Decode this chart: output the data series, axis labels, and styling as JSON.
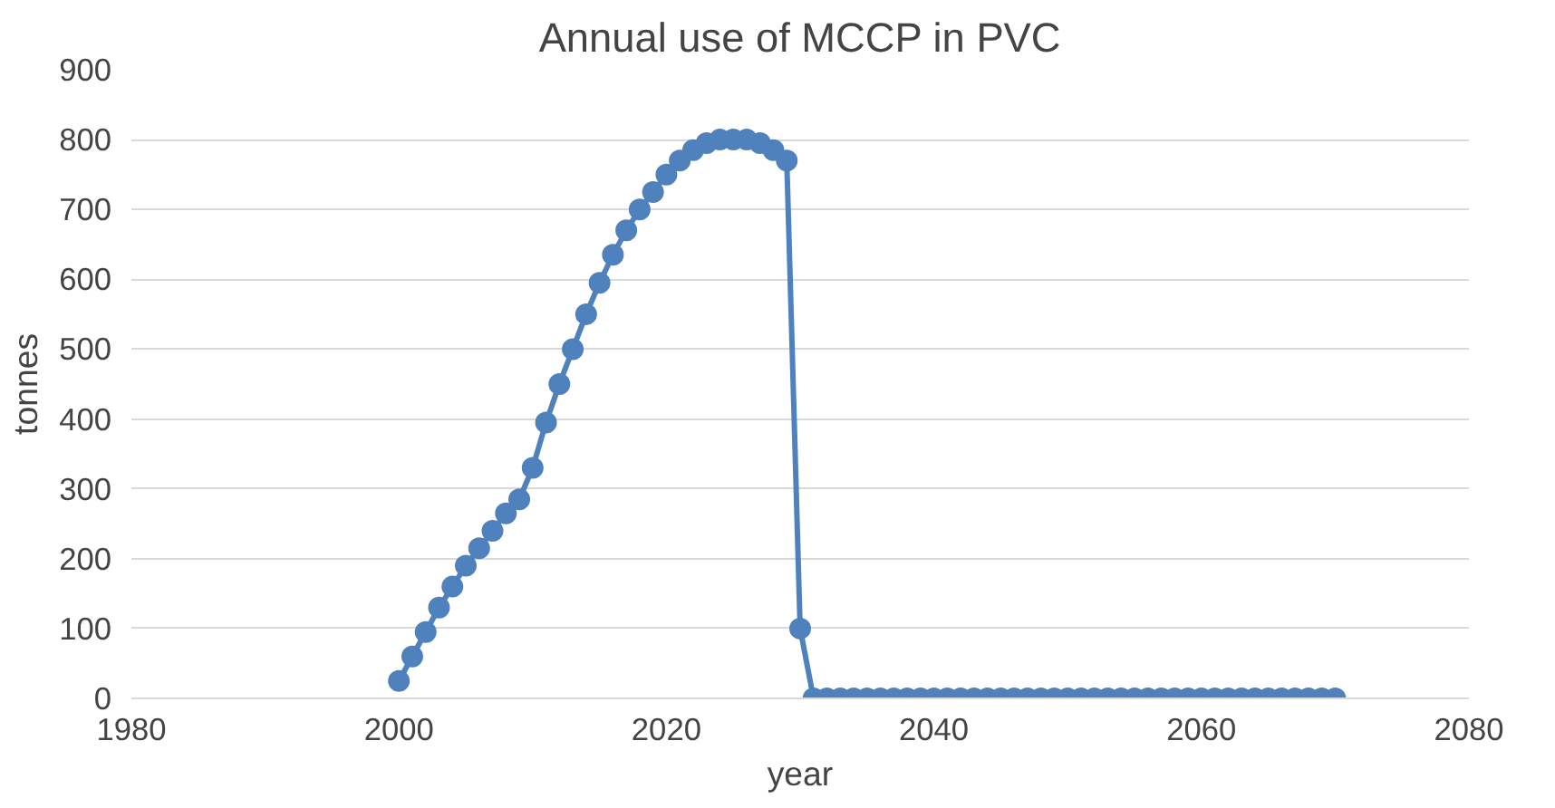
{
  "chart_data": {
    "type": "line",
    "title": "Annual use of MCCP in PVC",
    "xlabel": "year",
    "ylabel": "tonnes",
    "x": [
      2000,
      2001,
      2002,
      2003,
      2004,
      2005,
      2006,
      2007,
      2008,
      2009,
      2010,
      2011,
      2012,
      2013,
      2014,
      2015,
      2016,
      2017,
      2018,
      2019,
      2020,
      2021,
      2022,
      2023,
      2024,
      2025,
      2026,
      2027,
      2028,
      2029,
      2030,
      2031,
      2032,
      2033,
      2034,
      2035,
      2036,
      2037,
      2038,
      2039,
      2040,
      2041,
      2042,
      2043,
      2044,
      2045,
      2046,
      2047,
      2048,
      2049,
      2050,
      2051,
      2052,
      2053,
      2054,
      2055,
      2056,
      2057,
      2058,
      2059,
      2060,
      2061,
      2062,
      2063,
      2064,
      2065,
      2066,
      2067,
      2068,
      2069,
      2070
    ],
    "series": [
      {
        "color": "#4f81bd",
        "values": [
          25,
          60,
          95,
          130,
          160,
          190,
          215,
          240,
          265,
          285,
          330,
          395,
          450,
          500,
          550,
          595,
          635,
          670,
          700,
          725,
          750,
          770,
          785,
          795,
          800,
          800,
          800,
          795,
          785,
          770,
          100,
          0,
          0,
          0,
          0,
          0,
          0,
          0,
          0,
          0,
          0,
          0,
          0,
          0,
          0,
          0,
          0,
          0,
          0,
          0,
          0,
          0,
          0,
          0,
          0,
          0,
          0,
          0,
          0,
          0,
          0,
          0,
          0,
          0,
          0,
          0,
          0,
          0,
          0,
          0,
          0
        ]
      }
    ],
    "xlim": [
      1980,
      2080
    ],
    "xticks": [
      1980,
      2000,
      2020,
      2040,
      2060,
      2080
    ],
    "ylim": [
      0,
      900
    ],
    "yticks": [
      0,
      100,
      200,
      300,
      400,
      500,
      600,
      700,
      800,
      900
    ],
    "grid": "y",
    "marker": "circle",
    "line_style": "solid"
  }
}
